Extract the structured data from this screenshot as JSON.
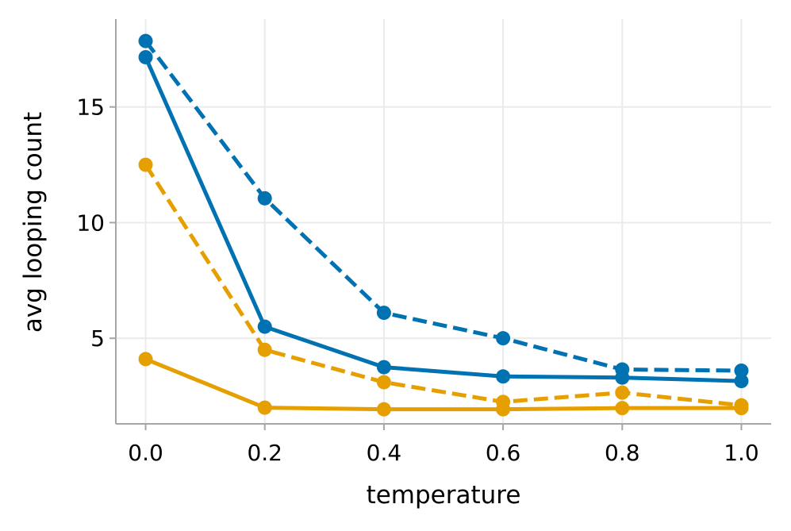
{
  "chart_data": {
    "type": "line",
    "title": "",
    "xlabel": "temperature",
    "ylabel": "avg looping count",
    "xlim": [
      -0.05,
      1.05
    ],
    "ylim": [
      1.3,
      18.8
    ],
    "grid": true,
    "x": [
      0.0,
      0.2,
      0.4,
      0.6,
      0.8,
      1.0
    ],
    "xticks": [
      {
        "value": 0.0,
        "label": "0.0"
      },
      {
        "value": 0.2,
        "label": "0.2"
      },
      {
        "value": 0.4,
        "label": "0.4"
      },
      {
        "value": 0.6,
        "label": "0.6"
      },
      {
        "value": 0.8,
        "label": "0.8"
      },
      {
        "value": 1.0,
        "label": "1.0"
      }
    ],
    "yticks": [
      {
        "value": 5,
        "label": "5"
      },
      {
        "value": 10,
        "label": "10"
      },
      {
        "value": 15,
        "label": "15"
      }
    ],
    "series": [
      {
        "name": "blue-dashed",
        "color": "#0072b2",
        "dash": "dashed",
        "values": [
          17.85,
          11.05,
          6.1,
          5.0,
          3.65,
          3.6
        ]
      },
      {
        "name": "blue-solid",
        "color": "#0072b2",
        "dash": "solid",
        "values": [
          17.15,
          5.5,
          3.75,
          3.35,
          3.3,
          3.15
        ]
      },
      {
        "name": "orange-dashed",
        "color": "#e69f00",
        "dash": "dashed",
        "values": [
          12.5,
          4.5,
          3.1,
          2.25,
          2.65,
          2.1
        ]
      },
      {
        "name": "orange-solid",
        "color": "#e69f00",
        "dash": "solid",
        "values": [
          4.1,
          2.0,
          1.93,
          1.93,
          1.98,
          1.98
        ]
      }
    ],
    "colors": {
      "grid": "#ebebeb",
      "spine": "#a6a6a6"
    }
  }
}
